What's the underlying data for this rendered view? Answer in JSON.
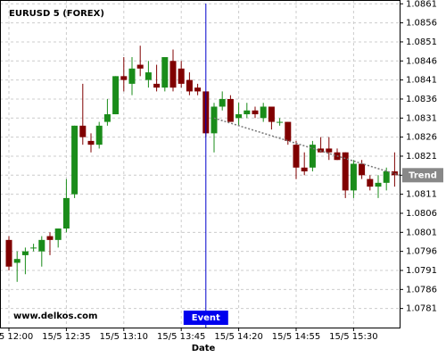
{
  "chart_data": {
    "type": "candlestick",
    "title": "EURUSD 5 (FOREX)",
    "x_label": "Date",
    "watermark": "www.delkos.com",
    "event_label": "Event",
    "trend": {
      "label": "Trend",
      "start": 1.0831,
      "end": 1.0816
    },
    "categories": [
      "15/5 12:00",
      null,
      null,
      null,
      null,
      null,
      null,
      "15/5 12:35",
      null,
      null,
      null,
      null,
      null,
      null,
      "15/5 13:10",
      null,
      null,
      null,
      null,
      null,
      null,
      "15/5 13:45",
      null,
      null,
      null,
      null,
      null,
      null,
      "15/5 14:20",
      null,
      null,
      null,
      null,
      null,
      null,
      "15/5 14:55",
      null,
      null,
      null,
      null,
      null,
      null,
      "15/5 15:30",
      null,
      null,
      null,
      null,
      null
    ],
    "open": [
      1.0799,
      1.0793,
      1.0795,
      1.0797,
      1.0796,
      1.08,
      1.0799,
      1.0802,
      1.0811,
      1.0829,
      1.0825,
      1.0824,
      1.083,
      1.0832,
      1.0842,
      1.084,
      1.0845,
      1.0841,
      1.084,
      1.0839,
      1.0846,
      1.0844,
      1.0841,
      1.0839,
      1.0838,
      1.0827,
      1.0834,
      1.0836,
      1.0831,
      1.0832,
      1.0833,
      1.0831,
      1.0834,
      1.083,
      1.083,
      1.0824,
      1.0818,
      1.0818,
      1.0823,
      1.0823,
      1.0822,
      1.0822,
      1.0812,
      1.0819,
      1.0815,
      1.0813,
      1.0814,
      1.0817
    ],
    "high": [
      1.08,
      1.0796,
      1.0797,
      1.0798,
      1.08,
      1.0801,
      1.0802,
      1.0815,
      1.0829,
      1.084,
      1.0827,
      1.083,
      1.0836,
      1.0842,
      1.0847,
      1.0847,
      1.085,
      1.0846,
      1.0845,
      1.0847,
      1.0849,
      1.0846,
      1.0843,
      1.084,
      1.0838,
      1.0835,
      1.0838,
      1.0837,
      1.0835,
      1.0835,
      1.0834,
      1.0835,
      1.0834,
      1.0831,
      1.083,
      1.0825,
      1.0822,
      1.0825,
      1.0826,
      1.0826,
      1.0823,
      1.0822,
      1.082,
      1.082,
      1.0816,
      1.0816,
      1.0818,
      1.0822
    ],
    "low": [
      1.0791,
      1.0788,
      1.079,
      1.0796,
      1.0792,
      1.0795,
      1.0797,
      1.0801,
      1.081,
      1.0824,
      1.0822,
      1.0823,
      1.0829,
      1.0832,
      1.0838,
      1.0837,
      1.0842,
      1.0839,
      1.0838,
      1.0838,
      1.0838,
      1.0839,
      1.0837,
      1.0837,
      1.0826,
      1.0822,
      1.0833,
      1.083,
      1.0829,
      1.0831,
      1.0831,
      1.083,
      1.0828,
      1.0829,
      1.0824,
      1.0815,
      1.0816,
      1.0817,
      1.0822,
      1.082,
      1.082,
      1.081,
      1.081,
      1.0815,
      1.0812,
      1.081,
      1.0812,
      1.0813
    ],
    "close": [
      1.0792,
      1.0794,
      1.0796,
      1.0797,
      1.0799,
      1.0799,
      1.0802,
      1.081,
      1.0829,
      1.0826,
      1.0824,
      1.0829,
      1.0832,
      1.0842,
      1.0841,
      1.0844,
      1.0844,
      1.0843,
      1.0839,
      1.0847,
      1.0839,
      1.084,
      1.0838,
      1.0838,
      1.0827,
      1.0834,
      1.0836,
      1.083,
      1.0832,
      1.0833,
      1.0832,
      1.0834,
      1.083,
      1.083,
      1.0825,
      1.0818,
      1.0817,
      1.0824,
      1.0822,
      1.0822,
      1.082,
      1.0812,
      1.0819,
      1.0816,
      1.0813,
      1.0814,
      1.0817,
      1.0816
    ],
    "up_color": "#1a8c1a",
    "down_color": "#800000",
    "ylim": [
      1.0776,
      1.0862
    ],
    "yticks": [
      1.0781,
      1.0786,
      1.0791,
      1.0796,
      1.0801,
      1.0806,
      1.0811,
      1.0816,
      1.0821,
      1.0826,
      1.0831,
      1.0836,
      1.0841,
      1.0846,
      1.0851,
      1.0856,
      1.0861
    ],
    "grid": true
  }
}
